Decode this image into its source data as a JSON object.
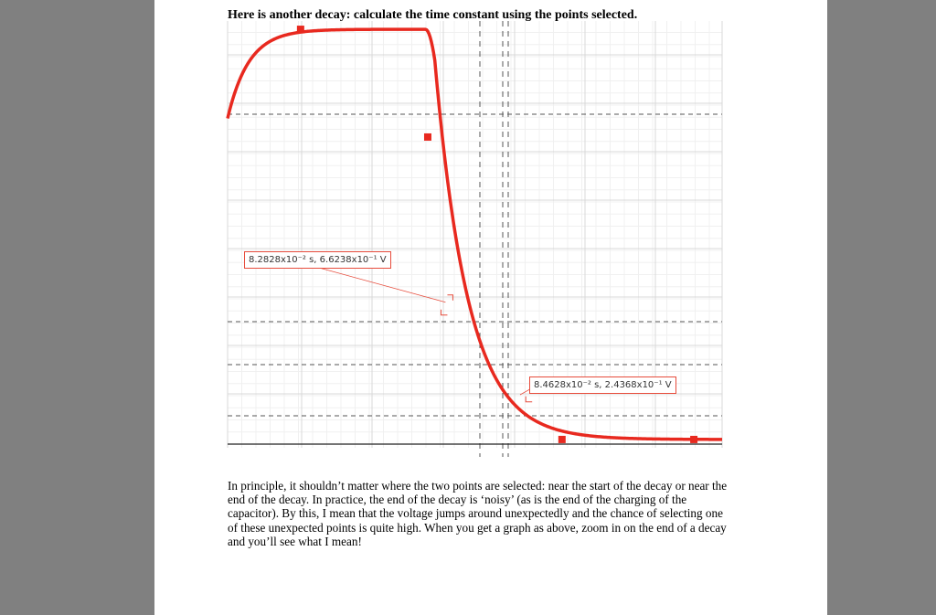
{
  "document": {
    "heading": "Here is another decay: calculate the time constant using the points selected.",
    "body": "In principle, it shouldn’t matter where the two points are selected: near the start of the decay or near the end of the decay. In practice, the end of the decay is ‘noisy’ (as is the end of the charging of the capacitor). By this, I mean that the voltage jumps around unexpectedly and the chance of selecting one of these unexpected points is quite high. When you get a graph as above, zoom in on the end of a decay and you’ll see what I mean!"
  },
  "chart_data": {
    "type": "line",
    "title": "",
    "xlabel": "",
    "ylabel": "",
    "xlim": [
      0.0782,
      0.0887
    ],
    "ylim": [
      -0.04,
      2.02
    ],
    "grid": true,
    "series": [
      {
        "color": "#e8291f",
        "x_start": 0.0782,
        "charge_end_x": 0.07975,
        "drop_start_x": 0.0824,
        "drop_end_x": 0.0853,
        "end_x": 0.0887,
        "high_v": 1.98,
        "low_v": 0.0,
        "start_v": 1.55,
        "time_constant_s": 0.00071
      }
    ],
    "markers": [
      {
        "x": 0.07975,
        "y": 1.98
      },
      {
        "x": 0.08245,
        "y": 1.46
      },
      {
        "x": 0.0853,
        "y": 0.0
      },
      {
        "x": 0.0881,
        "y": 0.0
      }
    ],
    "selected_points": [
      {
        "x": 0.082828,
        "y": 0.66238,
        "label": "8.2828x10⁻² s, 6.6238x10⁻¹ V"
      },
      {
        "x": 0.084628,
        "y": 0.24368,
        "label": "8.4628x10⁻² s, 2.4368x10⁻¹ V"
      }
    ]
  }
}
